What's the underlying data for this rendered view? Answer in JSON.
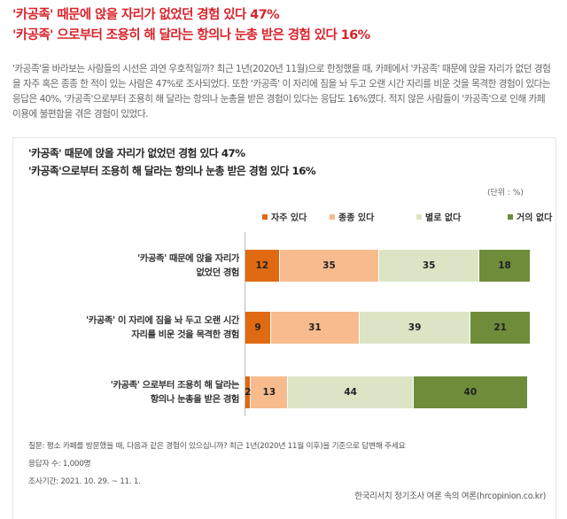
{
  "headline": [
    "'카공족' 때문에 앉을 자리가 없었던 경험 있다 47%",
    "'카공족' 으로부터 조용히 해 달라는 항의나 눈총 받은 경험 있다 16%"
  ],
  "intro": "'카공족'을 바라보는 사람들의 시선은 과연 우호적일까? 최근 1년(2020년 11월)으로 한정했을 때, 카페에서 '카공족' 때문에 앉을 자리가 없던 경험을 자주 혹은 종종 한 적이 있는 사람은 47%로 조사되었다. 또한 '카공족' 이 자리에 짐을 놔 두고 오랜 시간 자리를 비운 것을 목격한 경험이 있다는 응답은 40%, '카공족'으로부터 조용히 해 달라는 항의나 눈총을 받은 경험이 있다는 응답도 16%였다. 적지 않은 사람들이 '카공족'으로 인해 카페 이용에 불편함을 겪은 경험이 있었다.",
  "chart_data": {
    "type": "bar",
    "orientation": "horizontal-stacked",
    "title": [
      "'카공족' 때문에 앉을 자리가 없었던 경험 있다 47%",
      "'카공족'으로부터 조용히 해 달라는 항의나 눈총 받은 경험 있다 16%"
    ],
    "unit": "(단위 : %)",
    "categories": [
      [
        "'카공족' 때문에 앉을 자리가",
        "없었던 경험"
      ],
      [
        "'카공족' 이 자리에 짐을 놔 두고 오랜 시간",
        "자리를 비운 것을 목격한 경험"
      ],
      [
        "'카공족' 으로부터 조용히 해 달라는",
        "항의나 눈총을 받은 경험"
      ]
    ],
    "series": [
      {
        "name": "자주 있다",
        "color": "#e06a12",
        "values": [
          12,
          9,
          2
        ]
      },
      {
        "name": "종종 있다",
        "color": "#f7bb8e",
        "values": [
          35,
          31,
          13
        ]
      },
      {
        "name": "별로 없다",
        "color": "#dbe5c6",
        "values": [
          35,
          39,
          44
        ]
      },
      {
        "name": "거의 없다",
        "color": "#6e8c3a",
        "values": [
          18,
          21,
          40
        ]
      }
    ],
    "xlim": [
      0,
      100
    ],
    "legend": "top"
  },
  "footer": {
    "question": "질문:  평소 카페를 방문했을 때, 다음과 같은 경험이 있으십니까? 최근 1년(2020년 11월 이후)을 기준으로 답변해 주세요",
    "respondents": "응답자 수: 1,000명",
    "period": "조사기간: 2021. 10. 29. ~ 11. 1.",
    "source": "한국리서치 정기조사 여론 속의 여론(hrcopinion.co.kr)"
  }
}
